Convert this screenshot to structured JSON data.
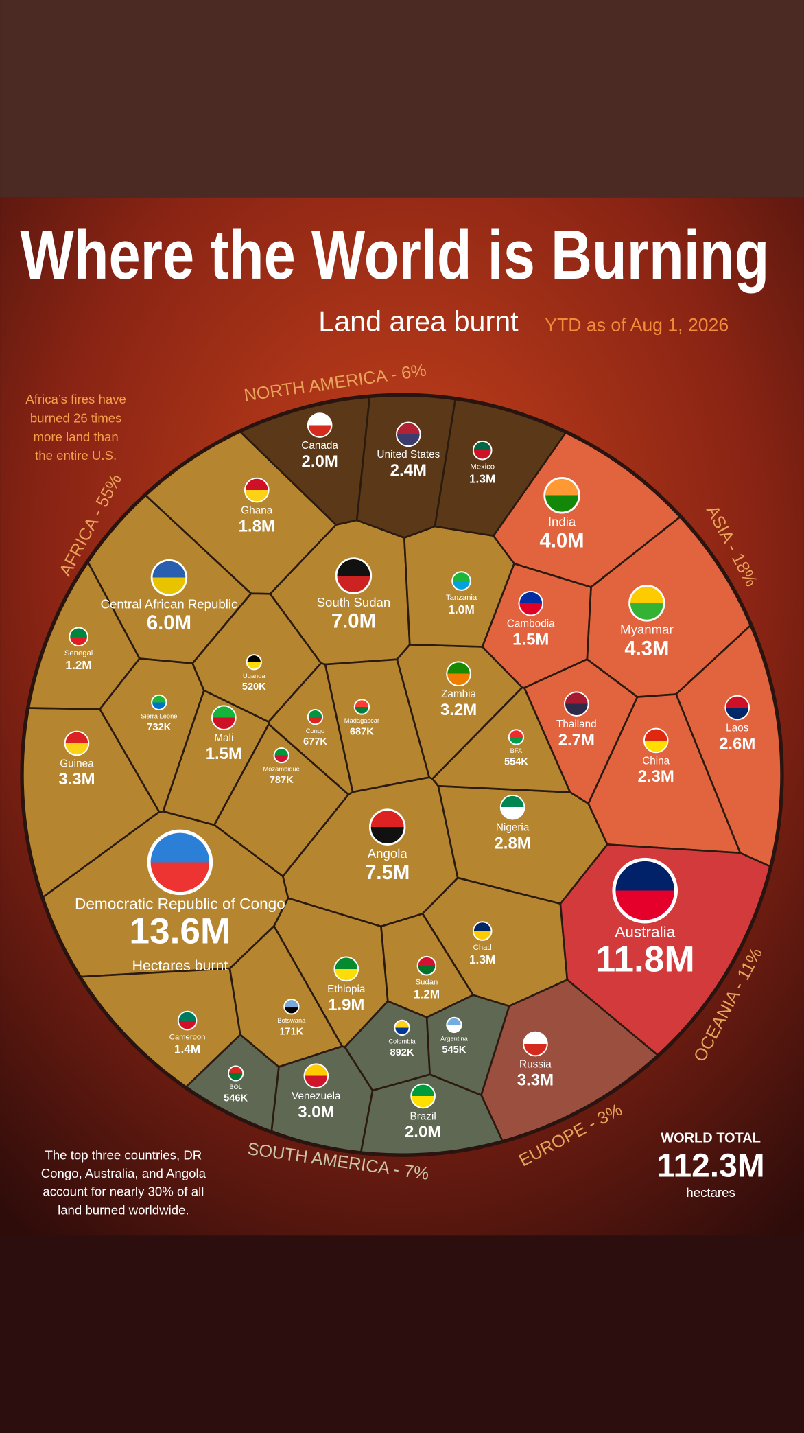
{
  "chart_data": {
    "type": "voronoi-treemap",
    "title": "Where the World is Burning",
    "subtitle": "Land area burnt",
    "date_note": "YTD as of Aug 1, 2026",
    "regions": [
      {
        "label": "AFRICA - 55%",
        "color": "#b5862f",
        "countries": [
          {
            "name": "Democratic Republic of Congo",
            "value": 13600000,
            "value_label": "13.6M",
            "note": "Hectares burnt"
          },
          {
            "name": "Angola",
            "value": 7500000,
            "value_label": "7.5M"
          },
          {
            "name": "South Sudan",
            "value": 7000000,
            "value_label": "7.0M"
          },
          {
            "name": "Central African Republic",
            "value": 6000000,
            "value_label": "6.0M"
          },
          {
            "name": "Guinea",
            "value": 3300000,
            "value_label": "3.3M"
          },
          {
            "name": "Zambia",
            "value": 3200000,
            "value_label": "3.2M"
          },
          {
            "name": "Nigeria",
            "value": 2800000,
            "value_label": "2.8M"
          },
          {
            "name": "Ethiopia",
            "value": 1900000,
            "value_label": "1.9M"
          },
          {
            "name": "Ghana",
            "value": 1800000,
            "value_label": "1.8M"
          },
          {
            "name": "Mali",
            "value": 1500000,
            "value_label": "1.5M"
          },
          {
            "name": "Cameroon",
            "value": 1400000,
            "value_label": "1.4M"
          },
          {
            "name": "Chad",
            "value": 1300000,
            "value_label": "1.3M"
          },
          {
            "name": "Senegal",
            "value": 1200000,
            "value_label": "1.2M"
          },
          {
            "name": "Sudan",
            "value": 1200000,
            "value_label": "1.2M"
          },
          {
            "name": "Tanzania",
            "value": 1000000,
            "value_label": "1.0M"
          },
          {
            "name": "Mozambique",
            "value": 787000,
            "value_label": "787K"
          },
          {
            "name": "Sierra Leone",
            "value": 732000,
            "value_label": "732K"
          },
          {
            "name": "Madagascar",
            "value": 687000,
            "value_label": "687K"
          },
          {
            "name": "Congo",
            "value": 677000,
            "value_label": "677K"
          },
          {
            "name": "BFA",
            "value": 554000,
            "value_label": "554K"
          },
          {
            "name": "Uganda",
            "value": 520000,
            "value_label": "520K"
          },
          {
            "name": "Botswana",
            "value": 171000,
            "value_label": "171K"
          }
        ]
      },
      {
        "label": "NORTH AMERICA - 6%",
        "color": "#5b3818",
        "countries": [
          {
            "name": "Canada",
            "value": 2000000,
            "value_label": "2.0M"
          },
          {
            "name": "United States",
            "value": 2400000,
            "value_label": "2.4M"
          },
          {
            "name": "Mexico",
            "value": 1300000,
            "value_label": "1.3M"
          }
        ]
      },
      {
        "label": "ASIA - 18%",
        "color": "#e2643f",
        "countries": [
          {
            "name": "India",
            "value": 4000000,
            "value_label": "4.0M"
          },
          {
            "name": "Myanmar",
            "value": 4300000,
            "value_label": "4.3M"
          },
          {
            "name": "Cambodia",
            "value": 1500000,
            "value_label": "1.5M"
          },
          {
            "name": "Thailand",
            "value": 2700000,
            "value_label": "2.7M"
          },
          {
            "name": "China",
            "value": 2300000,
            "value_label": "2.3M"
          },
          {
            "name": "Laos",
            "value": 2600000,
            "value_label": "2.6M"
          }
        ]
      },
      {
        "label": "OCEANIA - 11%",
        "color": "#d23a3b",
        "countries": [
          {
            "name": "Australia",
            "value": 11800000,
            "value_label": "11.8M"
          }
        ]
      },
      {
        "label": "EUROPE - 3%",
        "color": "#9a4f3f",
        "countries": [
          {
            "name": "Russia",
            "value": 3300000,
            "value_label": "3.3M"
          }
        ]
      },
      {
        "label": "SOUTH AMERICA - 7%",
        "color": "#5f6852",
        "countries": [
          {
            "name": "Venezuela",
            "value": 3000000,
            "value_label": "3.0M"
          },
          {
            "name": "Brazil",
            "value": 2000000,
            "value_label": "2.0M"
          },
          {
            "name": "Colombia",
            "value": 892000,
            "value_label": "892K"
          },
          {
            "name": "Argentina",
            "value": 545000,
            "value_label": "545K"
          },
          {
            "name": "BOL",
            "value": 546000,
            "value_label": "546K"
          }
        ]
      }
    ],
    "annotations": [
      {
        "lines": [
          "Africa’s fires have",
          "burned 26 times",
          "more land than",
          "the entire U.S."
        ]
      },
      {
        "lines": [
          "The top three countries, DR",
          "Congo, Australia, and Angola",
          "account for nearly 30% of all",
          "land burned worldwide."
        ]
      }
    ],
    "total": {
      "label": "WORLD TOTAL",
      "value": 112300000,
      "value_label": "112.3M",
      "unit": "hectares"
    }
  }
}
